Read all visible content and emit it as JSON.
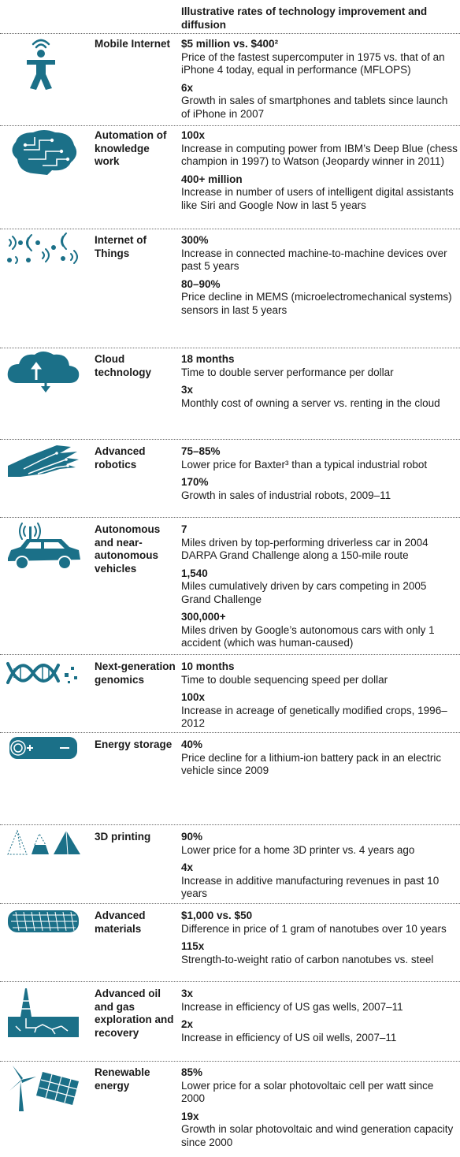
{
  "header": {
    "title": "Illustrative rates of technology improvement and diffusion"
  },
  "rows": [
    {
      "name": "Mobile Internet",
      "icon": "person-wifi-icon",
      "stats": [
        {
          "value": "$5 million vs. $400²",
          "desc": "Price of the fastest supercomputer in 1975 vs. that of an iPhone 4 today, equal in performance (MFLOPS)"
        },
        {
          "value": "6x",
          "desc": "Growth in sales of smartphones and tablets since launch of iPhone in 2007"
        }
      ]
    },
    {
      "name": "Automation of knowledge work",
      "icon": "brain-circuit-icon",
      "stats": [
        {
          "value": "100x",
          "desc": "Increase in computing power from IBM’s Deep Blue (chess champion in 1997) to Watson (Jeopardy winner in 2011)"
        },
        {
          "value": "400+ million",
          "desc": "Increase in number of users of intelligent digital assistants like Siri and Google Now in last 5 years"
        }
      ]
    },
    {
      "name": "Internet of Things",
      "icon": "connected-devices-icon",
      "stats": [
        {
          "value": "300%",
          "desc": "Increase in connected machine-to-machine devices over past 5 years"
        },
        {
          "value": "80–90%",
          "desc": "Price decline in MEMS (microelectromechanical systems) sensors in last 5 years"
        }
      ]
    },
    {
      "name": "Cloud technology",
      "icon": "cloud-transfer-icon",
      "stats": [
        {
          "value": "18 months",
          "desc": "Time to double server performance per dollar"
        },
        {
          "value": "3x",
          "desc": "Monthly cost of owning a server vs. renting in the cloud"
        }
      ]
    },
    {
      "name": "Advanced robotics",
      "icon": "robotic-hand-icon",
      "stats": [
        {
          "value": "75–85%",
          "desc": "Lower price for Baxter³ than a typical industrial robot"
        },
        {
          "value": "170%",
          "desc": "Growth in sales of industrial robots, 2009–11"
        }
      ]
    },
    {
      "name": "Autonomous and near-autonomous vehicles",
      "icon": "autonomous-car-icon",
      "stats": [
        {
          "value": "7",
          "desc": "Miles driven by top-performing driverless car in 2004 DARPA Grand Challenge along a 150-mile route"
        },
        {
          "value": "1,540",
          "desc": "Miles cumulatively driven by cars competing in 2005 Grand Challenge"
        },
        {
          "value": "300,000+",
          "desc": "Miles driven by Google’s autonomous cars with only 1 accident (which was human-caused)"
        }
      ]
    },
    {
      "name": "Next-generation genomics",
      "icon": "dna-helix-icon",
      "stats": [
        {
          "value": "10 months",
          "desc": "Time to double sequencing speed per dollar"
        },
        {
          "value": "100x",
          "desc": "Increase in acreage of genetically modified crops, 1996–2012"
        }
      ]
    },
    {
      "name": "Energy storage",
      "icon": "battery-icon",
      "stats": [
        {
          "value": "40%",
          "desc": "Price decline for a lithium-ion battery pack in an electric vehicle since 2009"
        }
      ]
    },
    {
      "name": "3D printing",
      "icon": "printed-pyramids-icon",
      "stats": [
        {
          "value": "90%",
          "desc": "Lower price for a home 3D printer vs. 4 years ago"
        },
        {
          "value": "4x",
          "desc": "Increase in additive manufacturing revenues in past 10 years"
        }
      ]
    },
    {
      "name": "Advanced materials",
      "icon": "nanotube-icon",
      "stats": [
        {
          "value": "$1,000 vs. $50",
          "desc": "Difference in price of 1 gram of nanotubes over 10 years"
        },
        {
          "value": "115x",
          "desc": "Strength-to-weight ratio of carbon nanotubes vs. steel"
        }
      ]
    },
    {
      "name": "Advanced oil and gas exploration and recovery",
      "icon": "oil-rig-icon",
      "stats": [
        {
          "value": "3x",
          "desc": "Increase in efficiency of US gas wells, 2007–11"
        },
        {
          "value": "2x",
          "desc": "Increase in efficiency of US oil wells, 2007–11"
        }
      ]
    },
    {
      "name": "Renewable energy",
      "icon": "wind-solar-icon",
      "stats": [
        {
          "value": "85%",
          "desc": "Lower price for a solar photovoltaic cell per watt since 2000"
        },
        {
          "value": "19x",
          "desc": "Growth in solar photovoltaic and wind generation capacity since 2000"
        }
      ]
    }
  ]
}
